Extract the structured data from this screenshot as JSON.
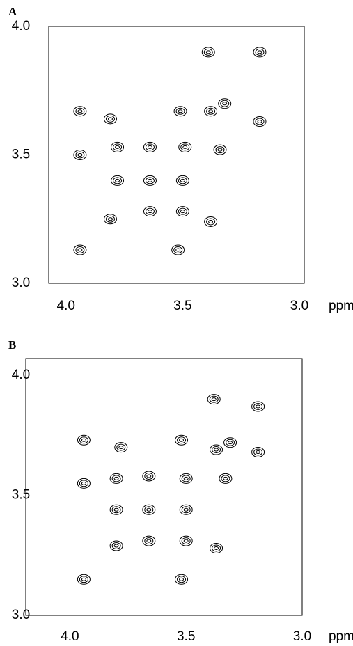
{
  "chart_data": [
    {
      "type": "scatter",
      "panel": "A",
      "xlabel": "ppm",
      "color": "#000000",
      "x": [
        3.39,
        3.17,
        3.38,
        3.32,
        3.17,
        3.81,
        3.94,
        3.51,
        3.64,
        3.49,
        3.78,
        3.94,
        3.34,
        3.64,
        3.5,
        3.78,
        3.81,
        3.38,
        3.64,
        3.5,
        3.94,
        3.52
      ],
      "values": [
        3.9,
        3.9,
        3.67,
        3.7,
        3.63,
        3.64,
        3.67,
        3.67,
        3.53,
        3.53,
        3.53,
        3.5,
        3.52,
        3.4,
        3.4,
        3.4,
        3.25,
        3.24,
        3.28,
        3.28,
        3.13,
        3.13
      ],
      "xlim": [
        4.074,
        2.979
      ],
      "ylim": [
        3.0,
        4.0
      ],
      "xticks": [
        {
          "value": 4,
          "label": "4.0"
        },
        {
          "value": 3.5,
          "label": "3.5"
        },
        {
          "value": 3,
          "label": "3.0"
        }
      ],
      "yticks": [
        {
          "value": 4,
          "label": "4.0"
        },
        {
          "value": 3.5,
          "label": "3.5"
        },
        {
          "value": 3,
          "label": "3.0"
        }
      ]
    },
    {
      "type": "scatter",
      "panel": "B",
      "xlabel": "ppm",
      "color": "#000000",
      "x": [
        3.38,
        3.19,
        3.37,
        3.31,
        3.19,
        3.78,
        3.94,
        3.52,
        3.66,
        3.5,
        3.8,
        3.94,
        3.33,
        3.66,
        3.5,
        3.8,
        3.8,
        3.37,
        3.66,
        3.5,
        3.94,
        3.52
      ],
      "values": [
        3.9,
        3.87,
        3.69,
        3.72,
        3.68,
        3.7,
        3.73,
        3.73,
        3.58,
        3.57,
        3.57,
        3.55,
        3.57,
        3.44,
        3.44,
        3.44,
        3.29,
        3.28,
        3.31,
        3.31,
        3.15,
        3.15
      ],
      "xlim": [
        4.19,
        3.0
      ],
      "ylim": [
        3.0,
        4.07
      ],
      "xticks": [
        {
          "value": 4,
          "label": "4.0"
        },
        {
          "value": 3.5,
          "label": "3.5"
        },
        {
          "value": 3,
          "label": "3.0"
        }
      ],
      "yticks": [
        {
          "value": 4,
          "label": "4.0"
        },
        {
          "value": 3.5,
          "label": "3.5"
        },
        {
          "value": 3,
          "label": "3.0"
        }
      ]
    }
  ]
}
